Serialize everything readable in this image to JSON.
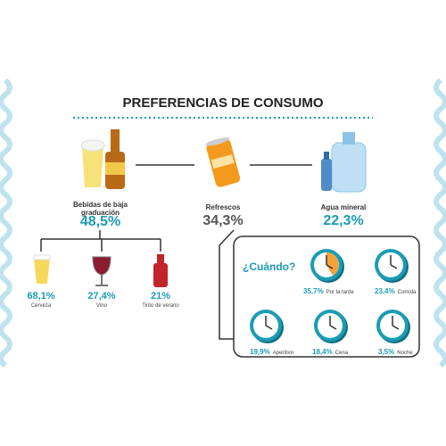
{
  "title": "PREFERENCIAS DE CONSUMO",
  "categories": [
    {
      "label": "Bebidas de baja graduación",
      "value": "48,5%"
    },
    {
      "label": "Refrescos",
      "value": "34,3%"
    },
    {
      "label": "Agua mineral",
      "value": "22,3%"
    }
  ],
  "subcategories": [
    {
      "label": "Cerveza",
      "value": "68,1%"
    },
    {
      "label": "Vino",
      "value": "27,4%"
    },
    {
      "label": "Tinto de verano",
      "value": "21%"
    }
  ],
  "when": {
    "title": "¿Cuándo?",
    "items": [
      {
        "value": "35,7%",
        "label": "Por la tarde"
      },
      {
        "value": "23,4%",
        "label": "Comida"
      },
      {
        "value": "19,9%",
        "label": "Aperitivo"
      },
      {
        "value": "18,4%",
        "label": "Cena"
      },
      {
        "value": "3,5%",
        "label": "Noche"
      }
    ]
  }
}
